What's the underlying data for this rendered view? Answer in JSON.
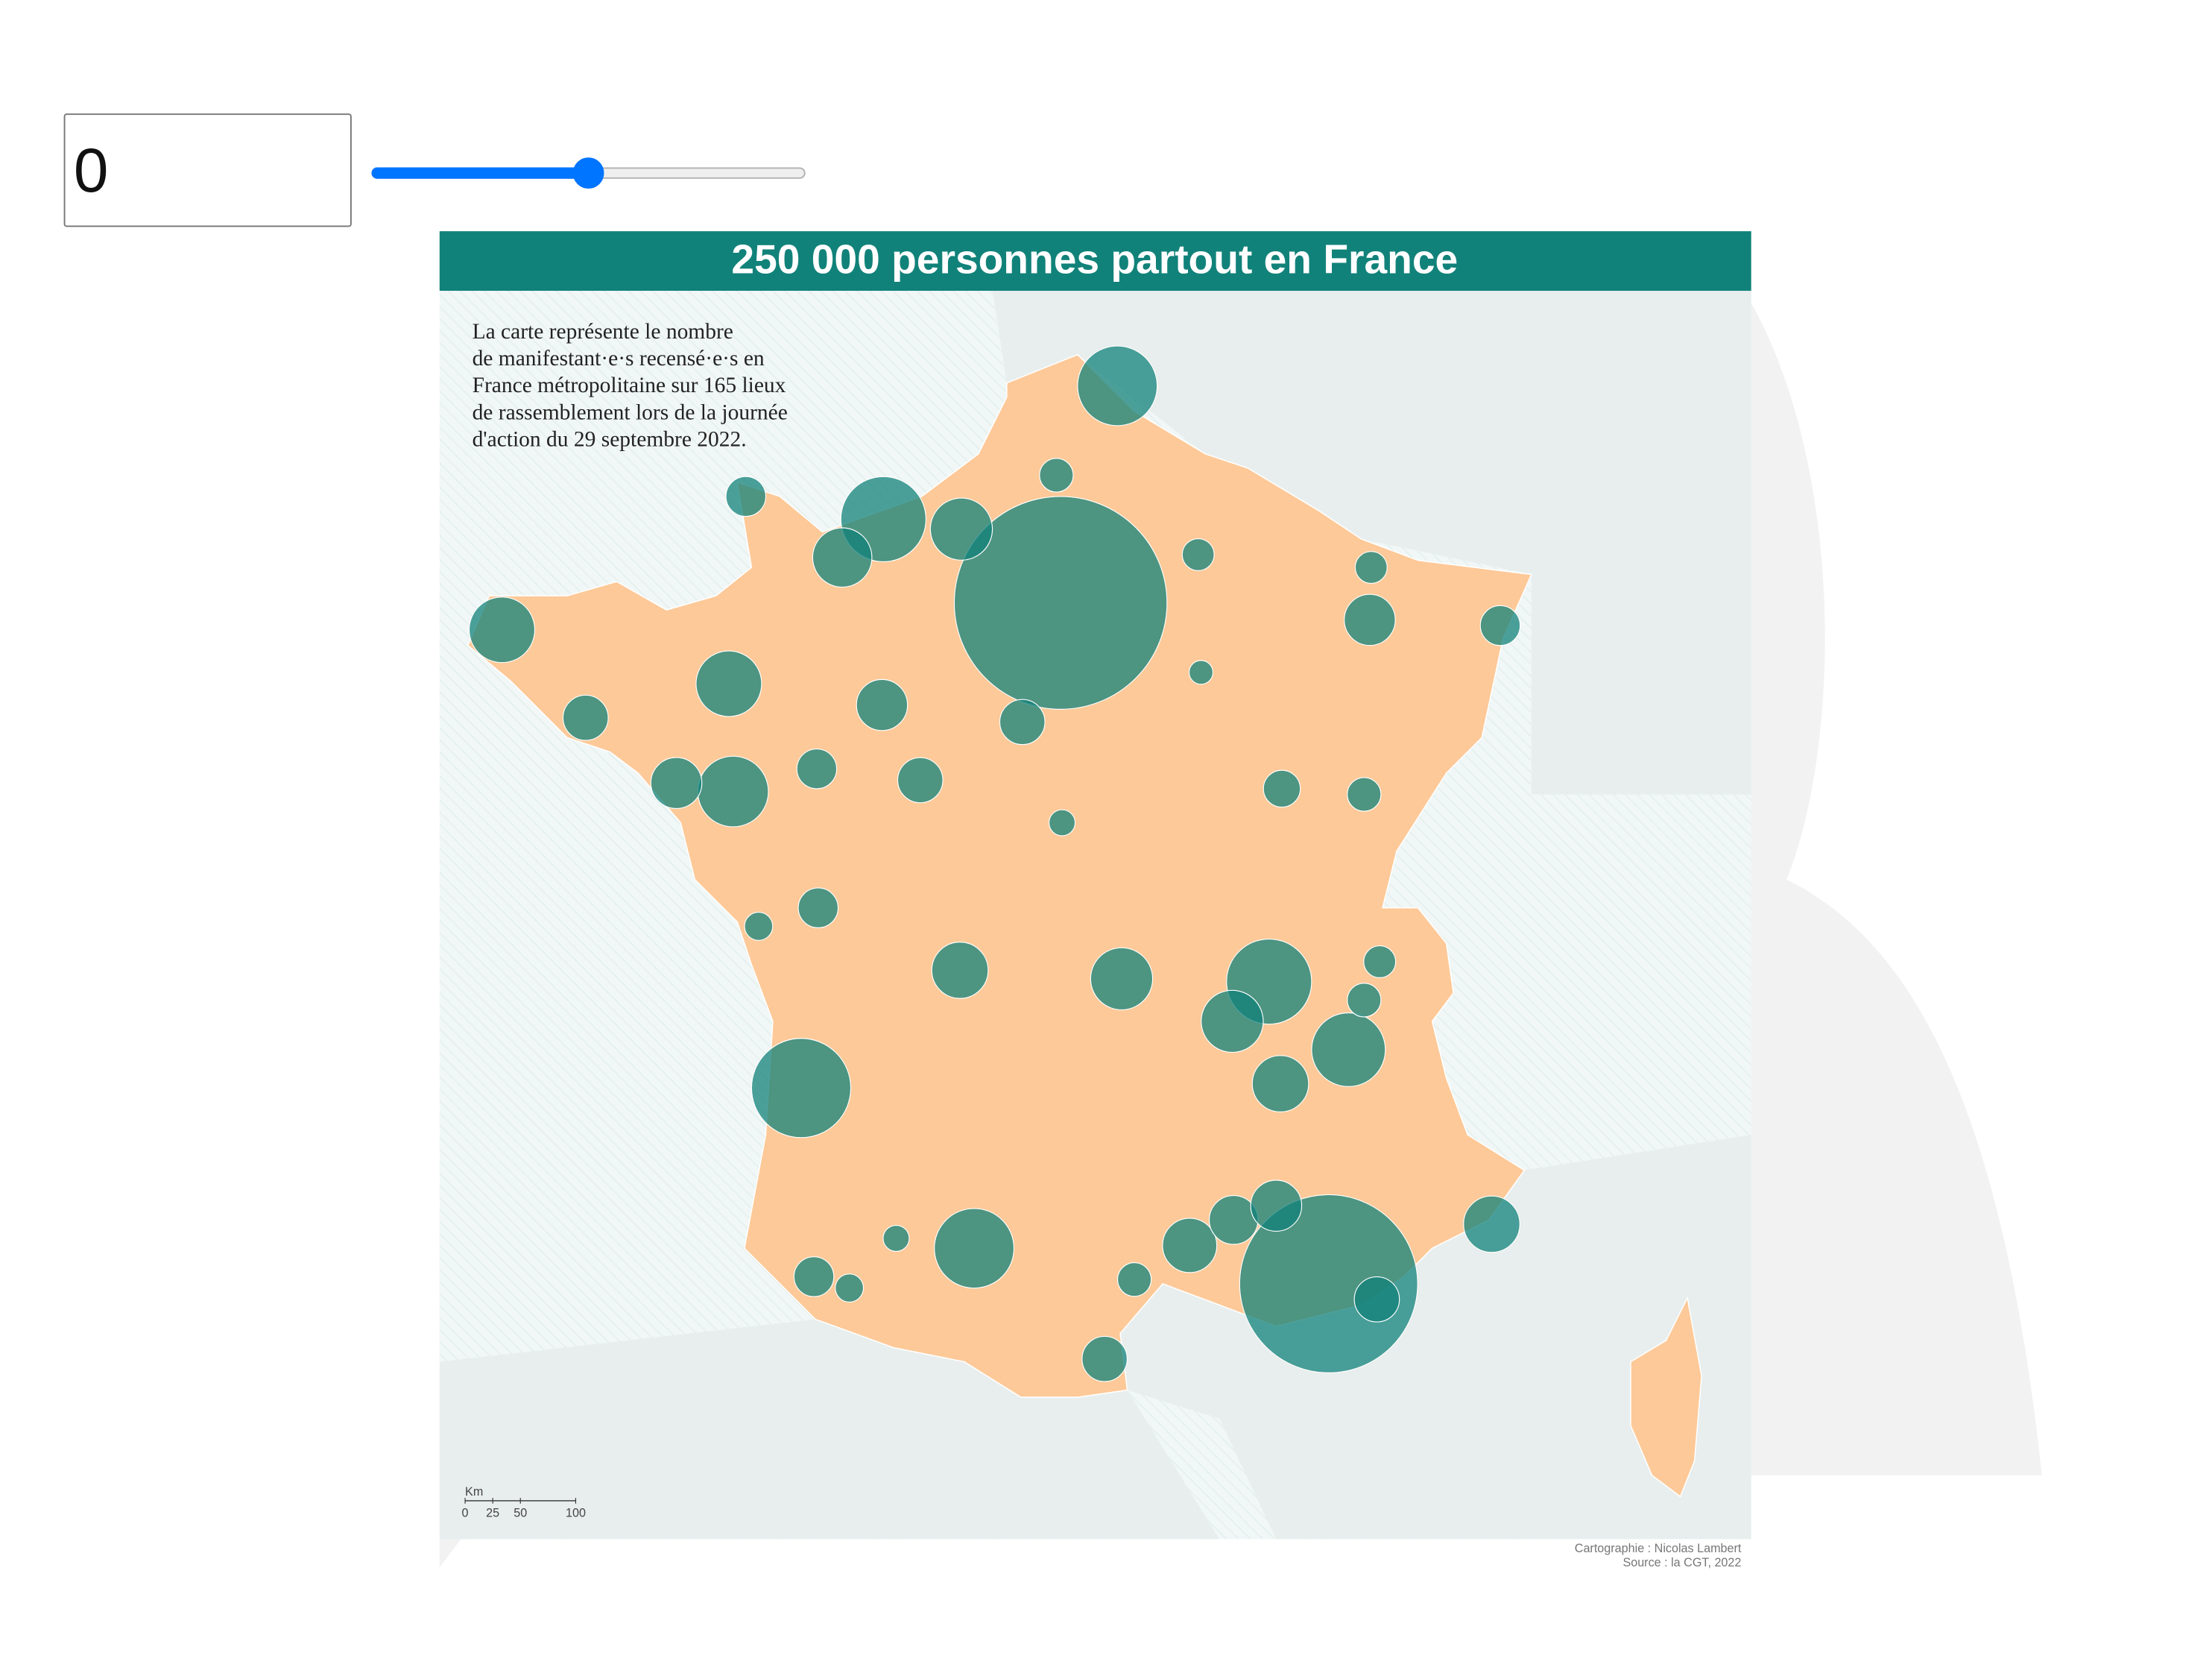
{
  "controls": {
    "input_value": "0"
  },
  "map": {
    "title": "250 000 personnes partout en France",
    "description": [
      "La carte représente le nombre",
      "de manifestant·e·s recensé·e·s en",
      "France métropolitaine sur 165 lieux",
      "de rassemblement lors de la journée",
      "d'action du 29 septembre 2022."
    ],
    "scale": {
      "unit": "Km",
      "ticks": [
        0,
        25,
        50,
        100
      ]
    },
    "credits": [
      "Cartographie : Nicolas Lambert",
      "Source : la CGT, 2022"
    ],
    "values": [
      40000,
      28000,
      8700,
      6400,
      5600,
      6400,
      3800,
      5600,
      4400,
      3800,
      4800,
      2800,
      2600,
      2100,
      2300,
      3100,
      3400,
      3400,
      2800,
      3400,
      2300,
      1400,
      1200,
      1800,
      1800,
      2300,
      1400,
      2300,
      1800,
      1400,
      1800,
      1800,
      2800,
      1000,
      900,
      1400,
      700,
      1400,
      700,
      1000,
      900,
      1000,
      600,
      500,
      900,
      1000,
      600
    ]
  }
}
